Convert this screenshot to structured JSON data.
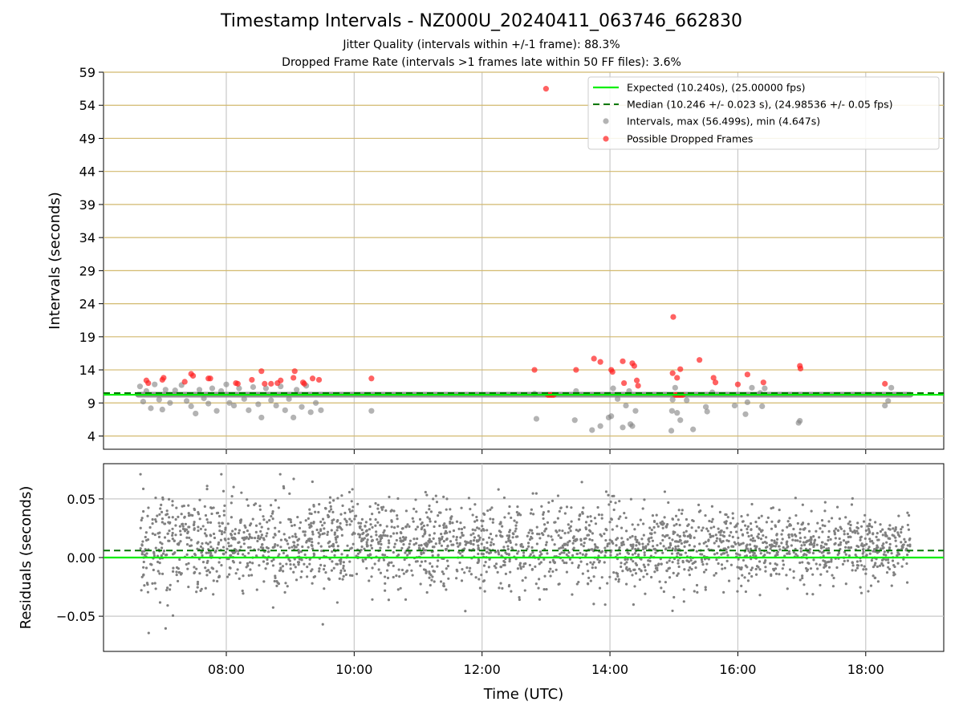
{
  "title": "Timestamp Intervals - NZ000U_20240411_063746_662830",
  "subtitle_1": "Jitter Quality (intervals within +/-1 frame): 88.3%",
  "subtitle_2": "Dropped Frame Rate (intervals >1 frames late within 50 FF files): 3.6%",
  "colors": {
    "expected": "#00ee00",
    "median": "#007700",
    "intervals": "#808080",
    "dropped": "#ff2020",
    "hgrid_top": "#d2b96e",
    "grid": "#c8c8c8"
  },
  "chart_data": [
    {
      "type": "scatter",
      "panel": "intervals",
      "xlabel": "",
      "ylabel": "Intervals (seconds)",
      "x_unit": "hours UTC",
      "xlim": [
        6.08,
        19.22
      ],
      "ylim": [
        2,
        59
      ],
      "yticks": [
        4,
        9,
        14,
        19,
        24,
        29,
        34,
        39,
        44,
        49,
        54,
        59
      ],
      "xticks": [
        8,
        10,
        12,
        14,
        16,
        18
      ],
      "xtick_labels": [
        "08:00",
        "10:00",
        "12:00",
        "14:00",
        "16:00",
        "18:00"
      ],
      "grid": "on",
      "legend_position": "top-right",
      "legend": [
        "Expected (10.240s), (25.00000 fps)",
        "Median (10.246 +/- 0.023 s), (24.98536 +/- 0.05 fps)",
        "Intervals, max (56.499s), min (4.647s)",
        "Possible Dropped Frames"
      ],
      "expected_value": 10.24,
      "median_value": 10.246,
      "baseline": {
        "x_start": 6.62,
        "x_end": 18.7,
        "value": 10.24
      },
      "series": [
        {
          "name": "Intervals, max (56.499s), min (4.647s)",
          "points": [
            [
              6.65,
              11.5
            ],
            [
              6.7,
              9.2
            ],
            [
              6.75,
              10.8
            ],
            [
              6.82,
              8.2
            ],
            [
              6.88,
              11.8
            ],
            [
              6.95,
              9.5
            ],
            [
              7.0,
              8.0
            ],
            [
              7.05,
              11.0
            ],
            [
              7.12,
              9.0
            ],
            [
              7.2,
              10.9
            ],
            [
              7.3,
              11.7
            ],
            [
              7.38,
              9.3
            ],
            [
              7.45,
              8.5
            ],
            [
              7.52,
              7.4
            ],
            [
              7.58,
              11.0
            ],
            [
              7.65,
              9.7
            ],
            [
              7.72,
              8.9
            ],
            [
              7.78,
              11.2
            ],
            [
              7.85,
              7.8
            ],
            [
              7.92,
              10.8
            ],
            [
              8.0,
              11.8
            ],
            [
              8.05,
              9.0
            ],
            [
              8.12,
              8.6
            ],
            [
              8.2,
              11.2
            ],
            [
              8.28,
              9.6
            ],
            [
              8.35,
              7.9
            ],
            [
              8.42,
              11.4
            ],
            [
              8.5,
              8.8
            ],
            [
              8.55,
              6.8
            ],
            [
              8.62,
              11.2
            ],
            [
              8.7,
              9.4
            ],
            [
              8.78,
              8.6
            ],
            [
              8.85,
              11.5
            ],
            [
              8.92,
              7.9
            ],
            [
              8.98,
              9.6
            ],
            [
              9.05,
              6.8
            ],
            [
              9.1,
              11.0
            ],
            [
              9.18,
              8.4
            ],
            [
              9.25,
              11.6
            ],
            [
              9.32,
              7.6
            ],
            [
              9.4,
              9.0
            ],
            [
              9.48,
              7.9
            ],
            [
              10.27,
              7.8
            ],
            [
              12.82,
              10.4
            ],
            [
              12.85,
              6.6
            ],
            [
              13.45,
              6.4
            ],
            [
              13.47,
              10.8
            ],
            [
              13.72,
              4.9
            ],
            [
              13.85,
              5.5
            ],
            [
              13.98,
              6.8
            ],
            [
              14.02,
              7.0
            ],
            [
              14.05,
              11.2
            ],
            [
              14.12,
              9.6
            ],
            [
              14.2,
              5.3
            ],
            [
              14.25,
              8.6
            ],
            [
              14.3,
              10.8
            ],
            [
              14.32,
              5.8
            ],
            [
              14.35,
              5.5
            ],
            [
              14.4,
              7.8
            ],
            [
              14.96,
              4.8
            ],
            [
              14.97,
              7.8
            ],
            [
              14.98,
              9.5
            ],
            [
              15.02,
              11.3
            ],
            [
              15.05,
              7.5
            ],
            [
              15.1,
              6.4
            ],
            [
              15.2,
              9.4
            ],
            [
              15.3,
              5.0
            ],
            [
              15.5,
              8.4
            ],
            [
              15.52,
              7.7
            ],
            [
              15.6,
              10.6
            ],
            [
              15.95,
              8.6
            ],
            [
              16.12,
              7.3
            ],
            [
              16.15,
              9.1
            ],
            [
              16.22,
              11.3
            ],
            [
              16.35,
              10.5
            ],
            [
              16.38,
              8.5
            ],
            [
              16.42,
              11.2
            ],
            [
              16.95,
              6.0
            ],
            [
              16.97,
              6.3
            ],
            [
              18.3,
              8.6
            ],
            [
              18.35,
              9.3
            ],
            [
              18.4,
              11.3
            ]
          ]
        },
        {
          "name": "Possible Dropped Frames",
          "points": [
            [
              6.75,
              12.4
            ],
            [
              6.78,
              12.0
            ],
            [
              7.0,
              12.5
            ],
            [
              7.02,
              12.8
            ],
            [
              7.35,
              12.2
            ],
            [
              7.45,
              13.4
            ],
            [
              7.48,
              13.1
            ],
            [
              7.72,
              12.7
            ],
            [
              7.75,
              12.7
            ],
            [
              8.15,
              12.0
            ],
            [
              8.18,
              11.9
            ],
            [
              8.4,
              12.5
            ],
            [
              8.55,
              13.8
            ],
            [
              8.6,
              11.9
            ],
            [
              8.7,
              11.9
            ],
            [
              8.8,
              12.0
            ],
            [
              8.85,
              12.4
            ],
            [
              9.05,
              12.8
            ],
            [
              9.07,
              13.8
            ],
            [
              9.2,
              12.1
            ],
            [
              9.22,
              11.9
            ],
            [
              9.35,
              12.7
            ],
            [
              9.45,
              12.5
            ],
            [
              10.27,
              12.7
            ],
            [
              12.82,
              14.0
            ],
            [
              13.0,
              56.5
            ],
            [
              13.47,
              14.0
            ],
            [
              13.75,
              15.7
            ],
            [
              13.85,
              15.2
            ],
            [
              14.02,
              14.0
            ],
            [
              14.04,
              13.7
            ],
            [
              14.2,
              15.3
            ],
            [
              14.22,
              12.0
            ],
            [
              14.35,
              15.0
            ],
            [
              14.38,
              14.6
            ],
            [
              14.42,
              12.4
            ],
            [
              14.44,
              11.6
            ],
            [
              14.98,
              13.5
            ],
            [
              14.99,
              22.0
            ],
            [
              15.05,
              12.8
            ],
            [
              15.1,
              14.1
            ],
            [
              15.4,
              15.5
            ],
            [
              15.62,
              12.8
            ],
            [
              15.65,
              12.1
            ],
            [
              16.0,
              11.8
            ],
            [
              16.15,
              13.3
            ],
            [
              16.4,
              12.1
            ],
            [
              16.97,
              14.6
            ],
            [
              16.98,
              14.2
            ],
            [
              18.3,
              11.9
            ],
            [
              13.03,
              10.2
            ],
            [
              13.06,
              10.2
            ],
            [
              13.09,
              10.2
            ],
            [
              13.12,
              10.2
            ],
            [
              15.02,
              10.2
            ],
            [
              15.05,
              10.2
            ],
            [
              15.08,
              10.2
            ],
            [
              15.11,
              10.2
            ],
            [
              15.14,
              10.2
            ]
          ]
        }
      ]
    },
    {
      "type": "scatter",
      "panel": "residuals",
      "xlabel": "Time (UTC)",
      "ylabel": "Residuals (seconds)",
      "x_unit": "hours UTC",
      "xlim": [
        6.08,
        19.22
      ],
      "ylim": [
        -0.08,
        0.08
      ],
      "yticks": [
        -0.05,
        0.0,
        0.05
      ],
      "ytick_labels": [
        "−0.05",
        "0.00",
        "0.05"
      ],
      "xticks": [
        8,
        10,
        12,
        14,
        16,
        18
      ],
      "xtick_labels": [
        "08:00",
        "10:00",
        "12:00",
        "14:00",
        "16:00",
        "18:00"
      ],
      "grid": "on",
      "expected_value": 0.0,
      "median_value": 0.006,
      "residual_cloud": {
        "x_start": 6.65,
        "x_end": 18.7,
        "approx_points": 2600,
        "bulk_range_early": [
          -0.035,
          0.06
        ],
        "bulk_range_late": [
          -0.03,
          0.04
        ],
        "extreme_min": -0.071,
        "extreme_max": 0.071
      }
    }
  ]
}
